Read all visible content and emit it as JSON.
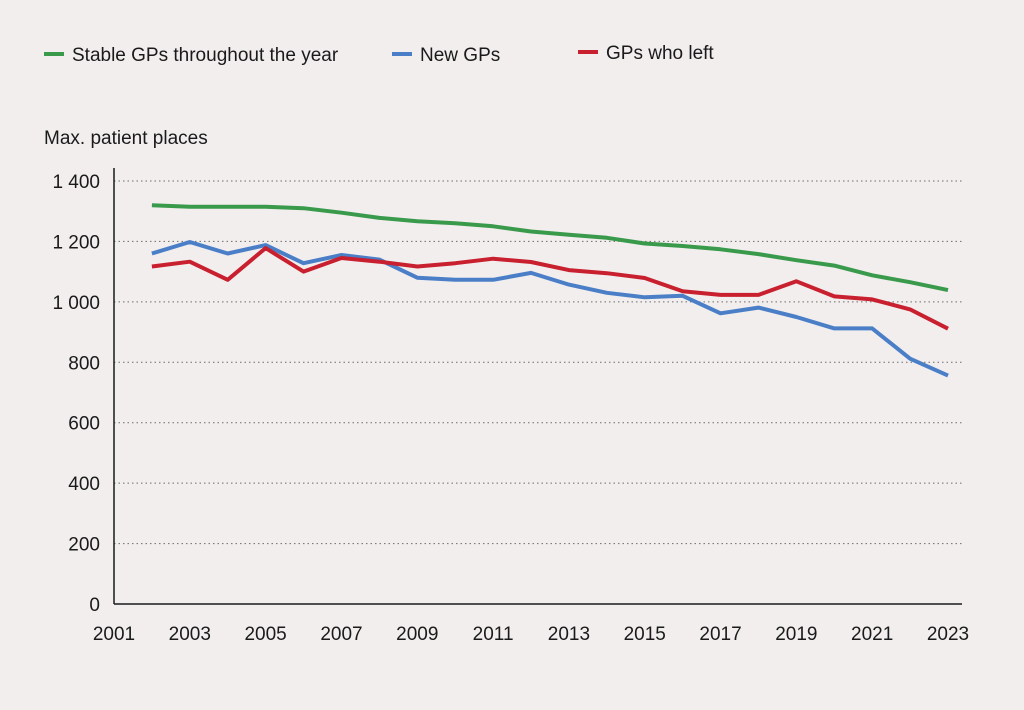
{
  "chart_data": {
    "type": "line",
    "title": "",
    "xlabel": "",
    "ylabel": "Max. patient places",
    "ylim": [
      0,
      1400
    ],
    "xlim": [
      2001,
      2023
    ],
    "y_ticks": [
      {
        "value": 0,
        "label": "0"
      },
      {
        "value": 200,
        "label": "200"
      },
      {
        "value": 400,
        "label": "400"
      },
      {
        "value": 600,
        "label": "600"
      },
      {
        "value": 800,
        "label": "800"
      },
      {
        "value": 1000,
        "label": "1 000"
      },
      {
        "value": 1200,
        "label": "1 200"
      },
      {
        "value": 1400,
        "label": "1 400"
      }
    ],
    "x_ticks": [
      {
        "value": 2001,
        "label": "2001"
      },
      {
        "value": 2003,
        "label": "2003"
      },
      {
        "value": 2005,
        "label": "2005"
      },
      {
        "value": 2007,
        "label": "2007"
      },
      {
        "value": 2009,
        "label": "2009"
      },
      {
        "value": 2011,
        "label": "2011"
      },
      {
        "value": 2013,
        "label": "2013"
      },
      {
        "value": 2015,
        "label": "2015"
      },
      {
        "value": 2017,
        "label": "2017"
      },
      {
        "value": 2019,
        "label": "2019"
      },
      {
        "value": 2021,
        "label": "2021"
      },
      {
        "value": 2023,
        "label": "2023"
      }
    ],
    "grid": true,
    "legend_position": "top",
    "x": [
      2002,
      2003,
      2004,
      2005,
      2006,
      2007,
      2008,
      2009,
      2010,
      2011,
      2012,
      2013,
      2014,
      2015,
      2016,
      2017,
      2018,
      2019,
      2020,
      2021,
      2022,
      2023
    ],
    "series": [
      {
        "name": "Stable GPs throughout the year",
        "color": "#3a9a4c",
        "values": [
          1320,
          1315,
          1315,
          1315,
          1310,
          1295,
          1278,
          1267,
          1260,
          1250,
          1233,
          1222,
          1212,
          1193,
          1185,
          1174,
          1158,
          1138,
          1120,
          1088,
          1065,
          1039
        ]
      },
      {
        "name": "New GPs",
        "color": "#4a7fc8",
        "values": [
          1160,
          1198,
          1160,
          1188,
          1128,
          1155,
          1140,
          1080,
          1073,
          1073,
          1096,
          1057,
          1030,
          1015,
          1020,
          962,
          981,
          950,
          912,
          912,
          812,
          756
        ]
      },
      {
        "name": "GPs who left",
        "color": "#c8202e",
        "values": [
          1117,
          1133,
          1073,
          1178,
          1100,
          1145,
          1133,
          1117,
          1128,
          1143,
          1132,
          1105,
          1095,
          1079,
          1035,
          1023,
          1023,
          1068,
          1018,
          1008,
          975,
          911
        ]
      }
    ]
  }
}
